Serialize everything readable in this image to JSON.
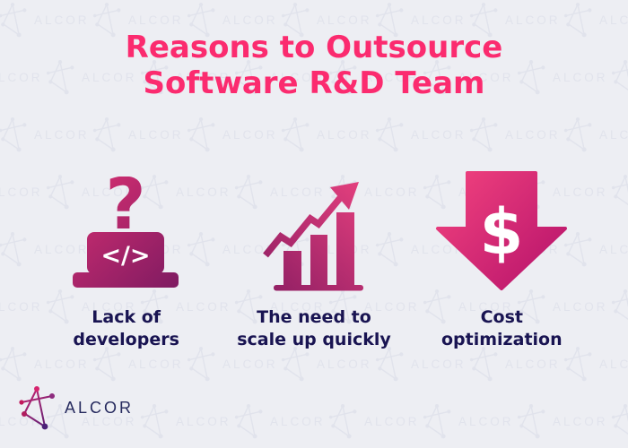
{
  "page": {
    "background_color": "#edeef3"
  },
  "watermark": {
    "text": "ALCOR",
    "color": "#e1e3ec"
  },
  "title": {
    "text": "Reasons to Outsource\nSoftware R&D Team",
    "color": "#fb2b6f"
  },
  "cards": [
    {
      "icon": "laptop-code-question-icon",
      "question_mark": "?",
      "code_symbol": "</>",
      "label": "Lack of\ndevelopers"
    },
    {
      "icon": "rising-bar-chart-arrow-icon",
      "label": "The need to\nscale up quickly"
    },
    {
      "icon": "down-arrow-dollar-icon",
      "dollar_sign": "$",
      "label": "Cost\noptimization"
    }
  ],
  "footer": {
    "brand": "ALCOR"
  },
  "colors": {
    "title_pink": "#fb2b6f",
    "label_navy": "#191452",
    "brand_navy": "#262a5e",
    "grad1_from": "#d93072",
    "grad1_to": "#7c1a61",
    "grad2_from": "#8e1e63",
    "grad2_to": "#e8417f",
    "grad3_from": "#f4447f",
    "grad3_to": "#b3106a",
    "logo_from": "#d6246e",
    "logo_to": "#4b2077"
  }
}
